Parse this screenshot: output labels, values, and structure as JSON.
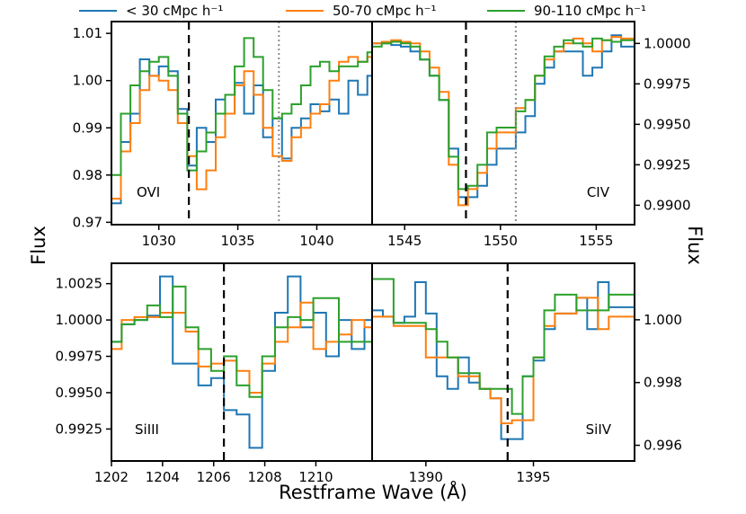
{
  "colors": {
    "blue": "#1f77b4",
    "orange": "#ff7f0e",
    "green": "#2ca02c"
  },
  "legend": [
    {
      "label": "< 30 cMpc h⁻¹",
      "color": "#1f77b4"
    },
    {
      "label": "50-70 cMpc h⁻¹",
      "color": "#ff7f0e"
    },
    {
      "label": "90-110 cMpc h⁻¹",
      "color": "#2ca02c"
    }
  ],
  "xlabel": "Restframe Wave (Å)",
  "ylabel_left": "Flux",
  "ylabel_right": "Flux",
  "chart_data": [
    {
      "type": "line",
      "step": true,
      "id": "ovi",
      "label": "OVI",
      "xlim": [
        1027,
        1043.5
      ],
      "ylim": [
        0.9695,
        1.0125
      ],
      "xticks": [
        1030,
        1035,
        1040
      ],
      "yticks": [
        0.97,
        0.98,
        0.99,
        1.0,
        1.01
      ],
      "ytick_labels": [
        "0.97",
        "0.98",
        "0.99",
        "1.00",
        "1.01"
      ],
      "vlines": [
        {
          "x": 1031.9,
          "style": "dashed"
        },
        {
          "x": 1037.6,
          "style": "dotted"
        }
      ],
      "x": [
        1027.0,
        1027.6,
        1028.2,
        1028.8,
        1029.4,
        1030.0,
        1030.6,
        1031.2,
        1031.8,
        1032.4,
        1033.0,
        1033.6,
        1034.2,
        1034.8,
        1035.4,
        1036.0,
        1036.6,
        1037.2,
        1037.8,
        1038.4,
        1039.0,
        1039.6,
        1040.2,
        1040.8,
        1041.4,
        1042.0,
        1042.6,
        1043.2
      ],
      "series": [
        {
          "name": "< 30 cMpc h⁻¹",
          "color": "#1f77b4",
          "values": [
            0.974,
            0.987,
            0.993,
            1.0045,
            1.001,
            1.003,
            1.002,
            0.994,
            0.982,
            0.99,
            0.987,
            0.996,
            0.993,
            0.9995,
            0.993,
            0.999,
            0.988,
            0.992,
            0.9835,
            0.99,
            0.992,
            0.995,
            0.9935,
            0.996,
            0.993,
            1.0,
            0.997,
            1.001
          ]
        },
        {
          "name": "50-70 cMpc h⁻¹",
          "color": "#ff7f0e",
          "values": [
            0.975,
            0.985,
            0.991,
            0.998,
            1.001,
            1.0,
            0.998,
            0.991,
            0.984,
            0.977,
            0.981,
            0.988,
            0.993,
            0.999,
            1.002,
            0.997,
            0.99,
            0.984,
            0.983,
            0.988,
            0.99,
            0.993,
            0.995,
            1.0,
            1.004,
            1.005,
            1.004,
            1.005
          ]
        },
        {
          "name": "90-110 cMpc h⁻¹",
          "color": "#2ca02c",
          "values": [
            0.98,
            0.993,
            0.999,
            1.002,
            1.004,
            1.005,
            1.001,
            0.993,
            0.981,
            0.985,
            0.989,
            0.993,
            0.997,
            1.003,
            1.009,
            1.005,
            0.998,
            0.992,
            0.993,
            0.995,
            0.999,
            1.003,
            1.004,
            1.002,
            1.003,
            1.003,
            1.004,
            1.006
          ]
        }
      ]
    },
    {
      "type": "line",
      "step": true,
      "id": "civ",
      "label": "CIV",
      "xlim": [
        1543.3,
        1557
      ],
      "ylim": [
        0.9888,
        1.00135
      ],
      "xticks": [
        1545,
        1550,
        1555
      ],
      "yticks": [
        0.99,
        0.9925,
        0.995,
        0.9975,
        1.0
      ],
      "ytick_labels": [
        "0.9900",
        "0.9925",
        "0.9950",
        "0.9975",
        "1.0000"
      ],
      "vlines": [
        {
          "x": 1548.2,
          "style": "dashed"
        },
        {
          "x": 1550.8,
          "style": "dotted"
        }
      ],
      "x": [
        1543.3,
        1543.8,
        1544.3,
        1544.8,
        1545.3,
        1545.8,
        1546.3,
        1546.8,
        1547.3,
        1547.8,
        1548.3,
        1548.8,
        1549.3,
        1549.8,
        1550.3,
        1550.8,
        1551.3,
        1551.8,
        1552.3,
        1552.8,
        1553.3,
        1553.8,
        1554.3,
        1554.8,
        1555.3,
        1555.8,
        1556.3
      ],
      "series": [
        {
          "name": "< 30 cMpc h⁻¹",
          "color": "#1f77b4",
          "values": [
            1.0,
            1.0,
            0.9999,
            0.9998,
            0.9995,
            0.999,
            0.998,
            0.9965,
            0.9935,
            0.9905,
            0.9905,
            0.9912,
            0.9925,
            0.9935,
            0.9935,
            0.9945,
            0.9955,
            0.9975,
            0.9985,
            0.9995,
            0.9995,
            0.9995,
            0.998,
            0.9985,
            0.9995,
            1.0005,
            0.9998
          ]
        },
        {
          "name": "50-70 cMpc h⁻¹",
          "color": "#ff7f0e",
          "values": [
            1.0,
            1.0001,
            1.0002,
            1.0001,
            1.0,
            0.9995,
            0.9985,
            0.997,
            0.9925,
            0.99,
            0.991,
            0.992,
            0.9935,
            0.9945,
            0.9945,
            0.996,
            0.9965,
            0.998,
            0.999,
            0.9995,
            1.0,
            1.0003,
            1.0,
            0.9995,
            1.0002,
            1.0004,
            1.0003
          ]
        },
        {
          "name": "90-110 cMpc h⁻¹",
          "color": "#2ca02c",
          "values": [
            0.9998,
            1.0,
            1.0001,
            1.0,
            0.9998,
            0.999,
            0.998,
            0.9965,
            0.993,
            0.991,
            0.9912,
            0.9925,
            0.9945,
            0.9948,
            0.9948,
            0.9958,
            0.9965,
            0.998,
            0.9992,
            0.9998,
            1.0002,
            1.0,
            0.9998,
            1.0003,
            1.0002,
            1.0001,
            1.0002
          ]
        }
      ]
    },
    {
      "type": "line",
      "step": true,
      "id": "siii",
      "label": "SiIII",
      "xlim": [
        1202,
        1212.2
      ],
      "ylim": [
        0.9903,
        1.0039
      ],
      "xticks": [
        1202,
        1204,
        1206,
        1208,
        1210
      ],
      "yticks": [
        0.9925,
        0.995,
        0.9975,
        1.0,
        1.0025
      ],
      "ytick_labels": [
        "0.9925",
        "0.9950",
        "0.9975",
        "1.0000",
        "1.0025"
      ],
      "vlines": [
        {
          "x": 1206.4,
          "style": "dashed"
        }
      ],
      "x": [
        1202.0,
        1202.4,
        1202.9,
        1203.4,
        1203.9,
        1204.4,
        1204.9,
        1205.4,
        1205.9,
        1206.4,
        1206.9,
        1207.4,
        1207.9,
        1208.4,
        1208.9,
        1209.4,
        1209.9,
        1210.4,
        1210.9,
        1211.4,
        1211.9
      ],
      "series": [
        {
          "name": "< 30 cMpc h⁻¹",
          "color": "#1f77b4",
          "values": [
            0.9985,
            0.9997,
            1.0,
            1.0003,
            1.003,
            0.997,
            0.997,
            0.9955,
            0.996,
            0.9938,
            0.9935,
            0.9912,
            0.9965,
            1.0005,
            1.003,
            0.9995,
            1.0005,
            0.9975,
            1.0,
            0.998,
            1.0
          ]
        },
        {
          "name": "50-70 cMpc h⁻¹",
          "color": "#ff7f0e",
          "values": [
            0.998,
            1.0,
            1.0002,
            1.0002,
            1.0005,
            1.0005,
            0.9992,
            0.9968,
            0.997,
            0.9972,
            0.9965,
            0.995,
            0.997,
            0.9985,
            0.9995,
            1.0012,
            0.998,
            0.9985,
            0.999,
            1.0,
            0.9995
          ]
        },
        {
          "name": "90-110 cMpc h⁻¹",
          "color": "#2ca02c",
          "values": [
            0.9985,
            0.9997,
            1.0,
            1.001,
            1.0002,
            1.0023,
            0.9995,
            0.998,
            0.9965,
            0.9975,
            0.9955,
            0.9947,
            0.9975,
            0.9995,
            1.0002,
            1.0,
            1.0015,
            1.0015,
            0.9985,
            0.9985,
            0.9985
          ]
        }
      ]
    },
    {
      "type": "line",
      "step": true,
      "id": "siiv",
      "label": "SiIV",
      "xlim": [
        1387.5,
        1399.7
      ],
      "ylim": [
        0.9955,
        1.0018
      ],
      "xticks": [
        1390,
        1395
      ],
      "yticks": [
        0.996,
        0.998,
        1.0
      ],
      "ytick_labels": [
        "0.996",
        "0.998",
        "1.000"
      ],
      "vlines": [
        {
          "x": 1393.8,
          "style": "dashed"
        }
      ],
      "x": [
        1387.5,
        1388.0,
        1388.5,
        1389.0,
        1389.5,
        1390.0,
        1390.5,
        1391.0,
        1391.5,
        1392.0,
        1392.5,
        1393.0,
        1393.5,
        1394.0,
        1394.5,
        1395.0,
        1395.5,
        1396.0,
        1396.5,
        1397.0,
        1397.5,
        1398.0,
        1398.5,
        1399.0,
        1399.5
      ],
      "series": [
        {
          "name": "< 30 cMpc h⁻¹",
          "color": "#1f77b4",
          "values": [
            1.0003,
            1.0001,
            0.9999,
            1.0001,
            1.0012,
            1.0002,
            0.9982,
            0.9978,
            0.9988,
            0.998,
            0.9978,
            0.9975,
            0.9962,
            0.9962,
            0.9982,
            0.9987,
            0.9997,
            1.0002,
            1.0002,
            1.0007,
            0.9997,
            1.0012,
            1.0004,
            1.0004,
            1.0004
          ]
        },
        {
          "name": "50-70 cMpc h⁻¹",
          "color": "#ff7f0e",
          "values": [
            1.0001,
            1.0001,
            0.9998,
            0.9998,
            0.9998,
            0.9988,
            0.9988,
            0.9988,
            0.9982,
            0.9982,
            0.9978,
            0.9975,
            0.9967,
            0.9968,
            0.9968,
            0.9988,
            0.9998,
            1.0002,
            1.0002,
            1.0007,
            1.0007,
            0.9997,
            1.0001,
            1.0001,
            1.0001
          ]
        },
        {
          "name": "90-110 cMpc h⁻¹",
          "color": "#2ca02c",
          "values": [
            1.0013,
            1.0013,
            0.9999,
            0.9999,
            0.9999,
            0.9997,
            0.9993,
            0.9988,
            0.9983,
            0.9983,
            0.9978,
            0.9978,
            0.9978,
            0.997,
            0.9982,
            0.9988,
            1.0003,
            1.0008,
            1.0008,
            1.0003,
            1.0003,
            1.0003,
            1.0008,
            1.0008,
            1.0008
          ]
        }
      ]
    }
  ]
}
